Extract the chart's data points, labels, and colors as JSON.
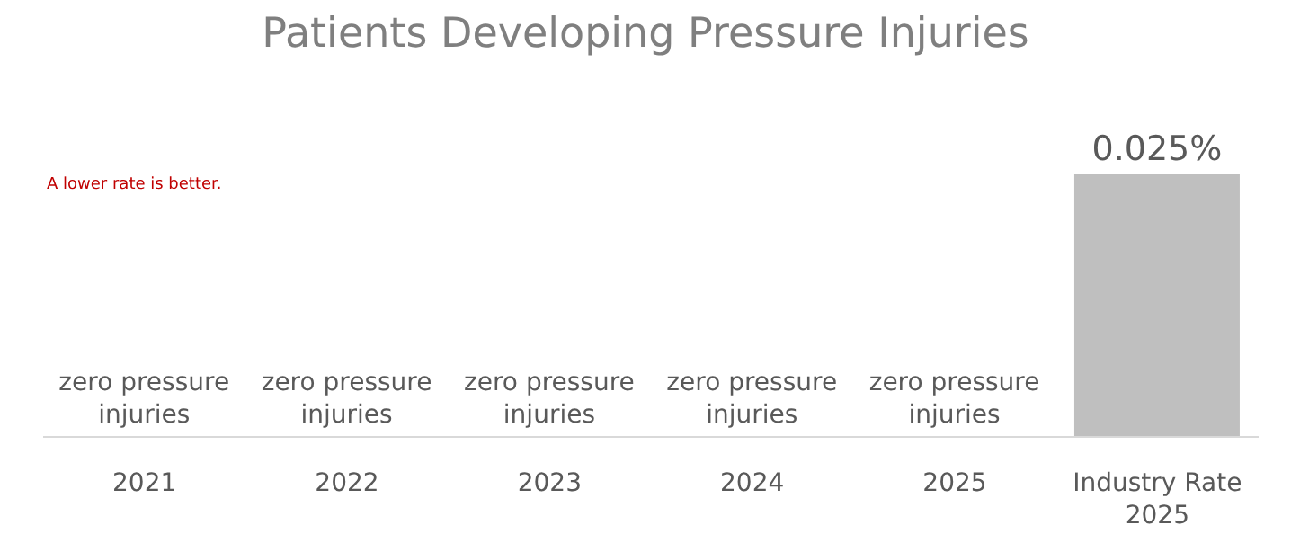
{
  "chart_data": {
    "type": "bar",
    "title": "Patients Developing Pressure Injuries",
    "categories": [
      "2021",
      "2022",
      "2023",
      "2024",
      "2025",
      "Industry Rate 2025"
    ],
    "values": [
      0,
      0,
      0,
      0,
      0,
      0.025
    ],
    "colors": [
      "#bfbfbf",
      "#bfbfbf",
      "#bfbfbf",
      "#bfbfbf",
      "#bfbfbf",
      "#bfbfbf"
    ],
    "value_labels": [
      "zero pressure injuries",
      "zero pressure injuries",
      "zero pressure injuries",
      "zero pressure injuries",
      "zero pressure injuries",
      "0.025%"
    ],
    "annotations": [
      "A lower rate is better."
    ],
    "grid": false,
    "legend": false
  }
}
